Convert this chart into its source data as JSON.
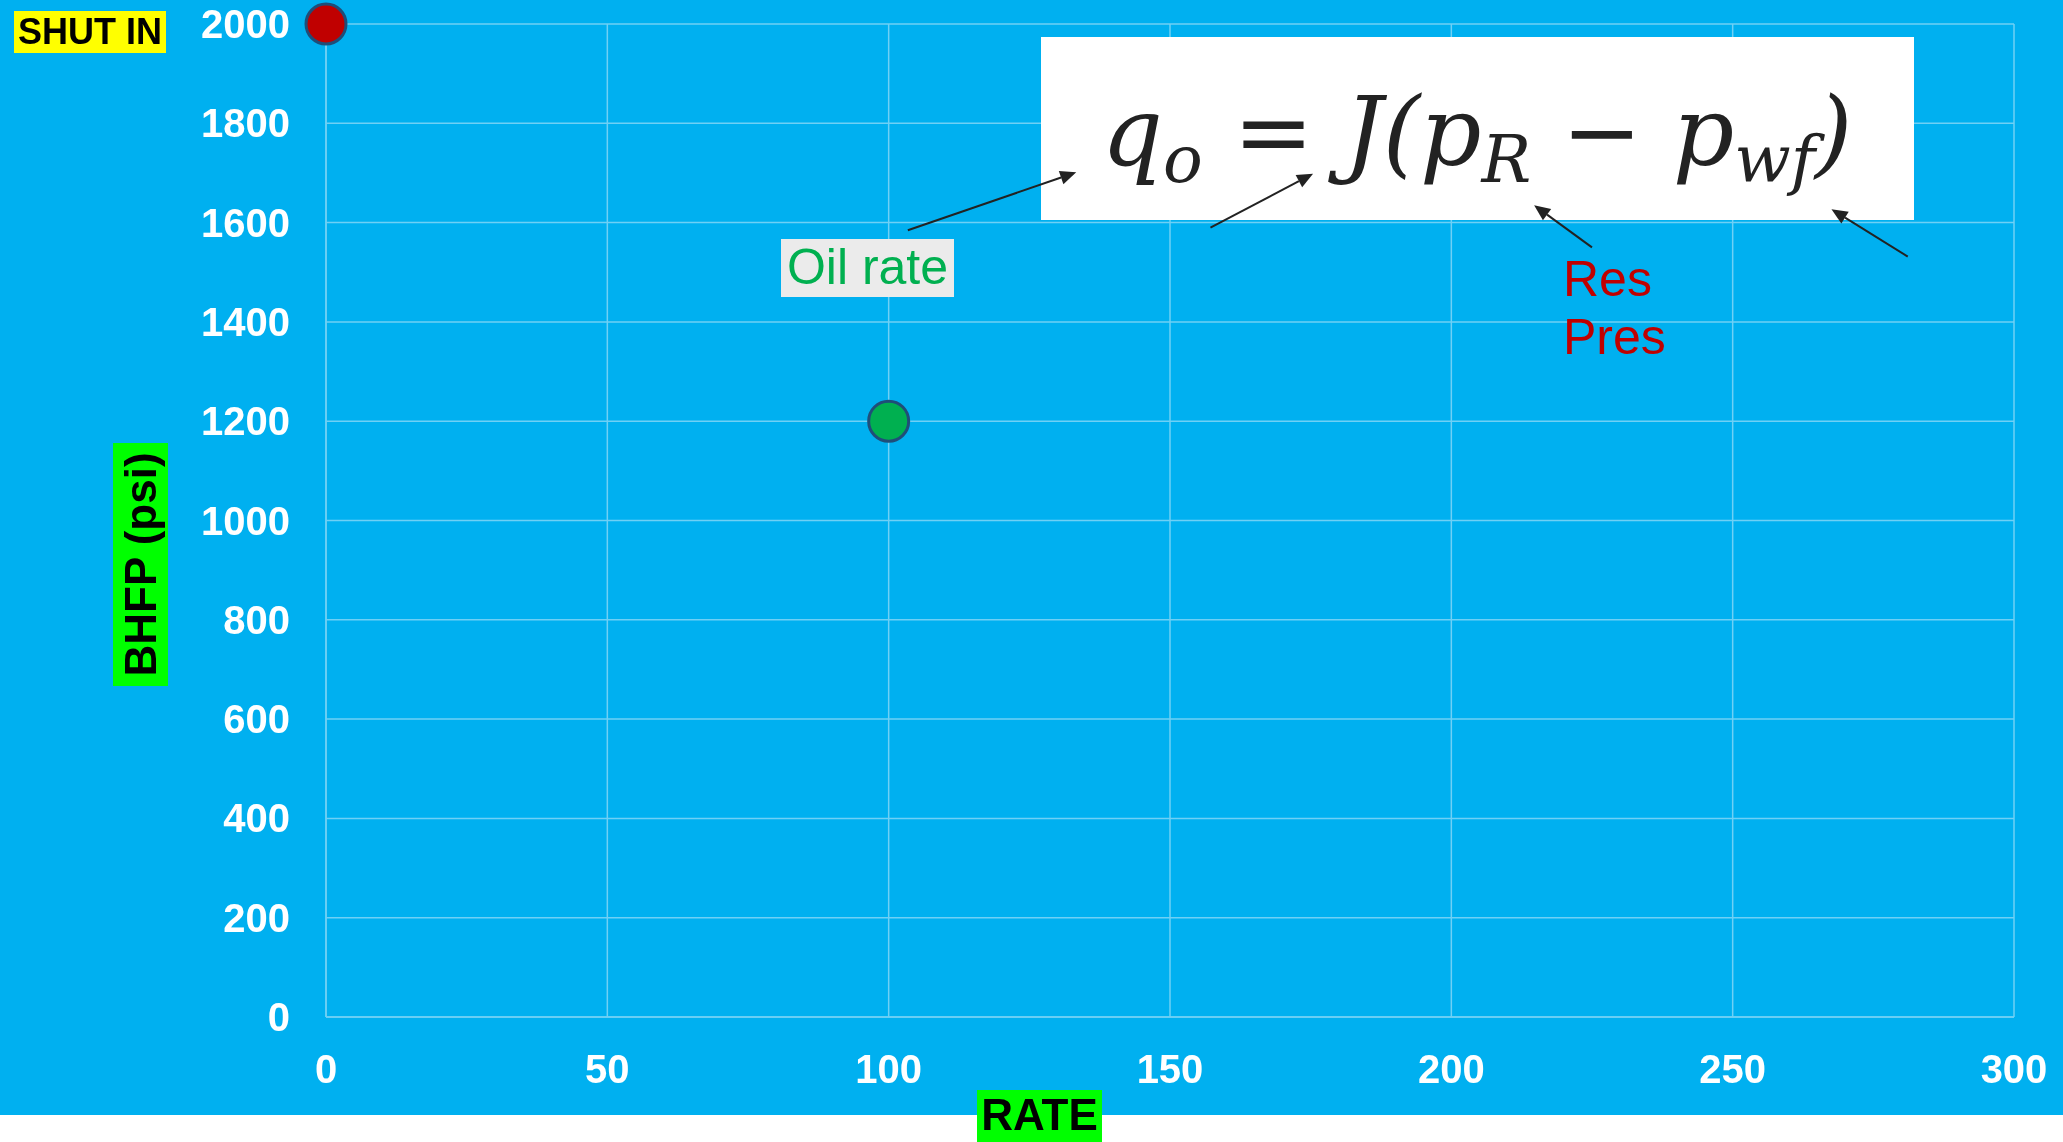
{
  "chart_data": {
    "type": "scatter",
    "xlabel": "RATE",
    "ylabel": "BHFP (psi)",
    "series": [
      {
        "x": [
          0,
          100
        ],
        "values": [
          2000,
          1200
        ],
        "colors": [
          "#c00000",
          "#00b050"
        ]
      }
    ],
    "xlim": [
      0,
      300
    ],
    "xticks": [
      0,
      50,
      100,
      150,
      200,
      250,
      300
    ],
    "ylim": [
      0,
      2000
    ],
    "yticks": [
      0,
      200,
      400,
      600,
      800,
      1000,
      1200,
      1400,
      1600,
      1800,
      2000
    ],
    "grid": true,
    "marker": "circle",
    "annotations": [
      "SHUT IN",
      "Oil rate",
      "Res Pres",
      "q$_{o}$ = J(p$_{R}$ − p$_{wf}$)"
    ]
  }
}
